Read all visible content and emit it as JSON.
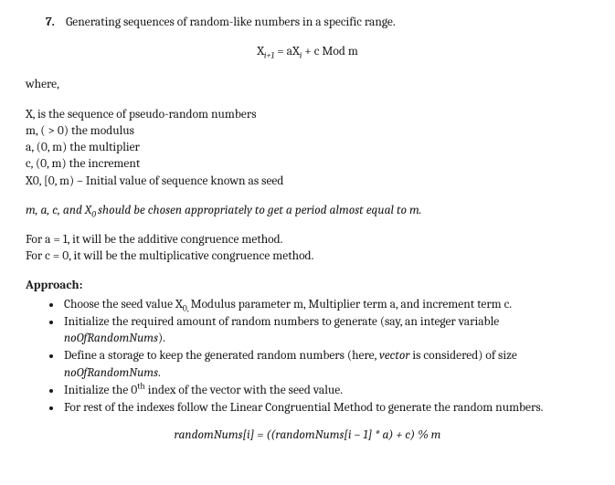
{
  "heading": {
    "number": "7.",
    "text": "Generating sequences of random-like numbers in a specific range."
  },
  "recurrence": {
    "lhs_base": "X",
    "lhs_sub": "i+1",
    "eq": " = a",
    "rhs1_base": "X",
    "rhs1_sub": "i",
    "tail": " + c Mod m"
  },
  "where_label": "where,",
  "definitions": {
    "seq": "X, is the sequence of pseudo-random numbers",
    "modulus": "m, ( > 0) the modulus",
    "multiplier": "a, (0, m) the multiplier",
    "increment": "c, (0, m) the increment",
    "seed": "X0,  [0, m) – Initial value of sequence known as seed"
  },
  "period_note": {
    "pre": "m, a, c, and X",
    "sub": "0 ",
    "post": "should be chosen appropriately to get a period almost equal to m."
  },
  "cases": {
    "additive": "For a = 1, it will be the additive congruence method.",
    "multiplicative": "For c = 0, it will be the multiplicative congruence method."
  },
  "approach_title": "Approach:",
  "approach": {
    "li1": {
      "pre": "Choose the seed value X",
      "sub": "0, ",
      "post": "Modulus parameter m, Multiplier term a, and increment term c."
    },
    "li2": {
      "pre": "Initialize the required amount of random numbers to generate (say, an integer variable ",
      "em": "noOfRandomNums",
      "post": ")."
    },
    "li3": {
      "pre": "Define a storage to keep the generated random numbers (here, ",
      "em1": "vector",
      "mid": " is considered) of size ",
      "em2": "noOfRandomNums",
      "post": "."
    },
    "li4": {
      "pre": "Initialize the 0",
      "sup": "th",
      "post": " index of the vector with the seed value."
    },
    "li5": "For rest of the indexes follow the Linear Congruential Method to generate the random numbers."
  },
  "final_formula": "randomNums[i] = ((randomNums[i – 1] * a) + c) % m"
}
